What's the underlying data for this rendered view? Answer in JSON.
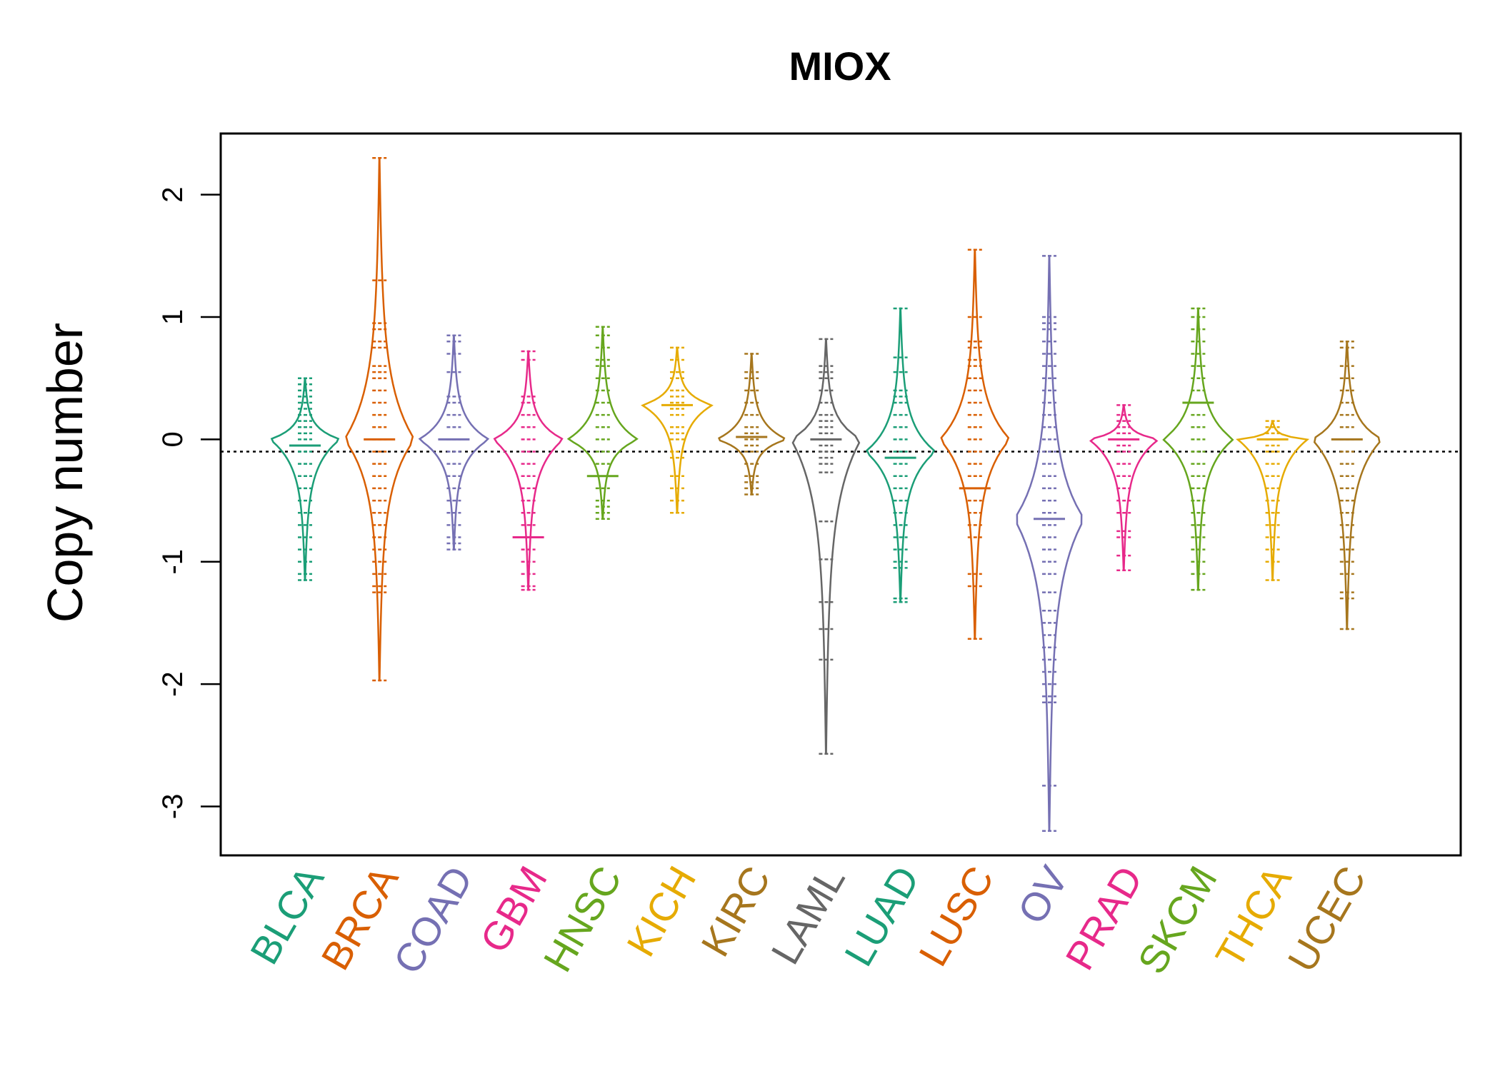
{
  "chart_data": {
    "type": "beanplot",
    "title": "MIOX",
    "xlabel": "",
    "ylabel": "Copy number",
    "ylim": [
      -3.4,
      2.5
    ],
    "yticks": [
      2,
      1,
      0,
      -1,
      -2,
      -3
    ],
    "ytick_labels": [
      "2",
      "1",
      "0",
      "-1",
      "-2",
      "-3"
    ],
    "overall_mean": -0.1,
    "grid": false,
    "legend": "none",
    "categories": [
      "BLCA",
      "BRCA",
      "COAD",
      "GBM",
      "HNSC",
      "KICH",
      "KIRC",
      "LAML",
      "LUAD",
      "LUSC",
      "OV",
      "PRAD",
      "SKCM",
      "THCA",
      "UCEC"
    ],
    "colors": [
      "#1b9e77",
      "#d95f02",
      "#7570b3",
      "#e7298a",
      "#66a61e",
      "#e6ab02",
      "#a6761d",
      "#666666",
      "#1b9e77",
      "#d95f02",
      "#7570b3",
      "#e7298a",
      "#66a61e",
      "#e6ab02",
      "#a6761d"
    ],
    "series": [
      {
        "name": "BLCA",
        "min": -1.15,
        "max": 0.5,
        "mode": 0.0,
        "mean": -0.05,
        "points": [
          0.5,
          0.45,
          0.4,
          0.35,
          0.3,
          0.25,
          0.2,
          0.15,
          0.1,
          0.05,
          0.0,
          -0.05,
          -0.1,
          -0.2,
          -0.3,
          -0.4,
          -0.5,
          -0.6,
          -0.7,
          -0.8,
          -0.9,
          -1.0,
          -1.1,
          -1.15
        ]
      },
      {
        "name": "BRCA",
        "min": -1.97,
        "max": 2.3,
        "mode": 0.0,
        "mean": 0.0,
        "points": [
          2.3,
          1.3,
          0.95,
          0.9,
          0.8,
          0.75,
          0.6,
          0.55,
          0.5,
          0.4,
          0.3,
          0.2,
          0.1,
          0.0,
          -0.1,
          -0.2,
          -0.3,
          -0.4,
          -0.5,
          -0.6,
          -0.7,
          -0.8,
          -0.9,
          -1.0,
          -1.1,
          -1.2,
          -1.25,
          -1.97
        ]
      },
      {
        "name": "COAD",
        "min": -0.9,
        "max": 0.85,
        "mode": 0.0,
        "mean": 0.0,
        "points": [
          0.85,
          0.8,
          0.7,
          0.55,
          0.35,
          0.3,
          0.2,
          0.1,
          0.0,
          -0.1,
          -0.2,
          -0.3,
          -0.4,
          -0.5,
          -0.6,
          -0.7,
          -0.8,
          -0.85,
          -0.9
        ]
      },
      {
        "name": "GBM",
        "min": -1.23,
        "max": 0.72,
        "mode": 0.0,
        "mean": -0.8,
        "points": [
          0.72,
          0.65,
          0.35,
          0.3,
          0.2,
          0.1,
          0.0,
          -0.1,
          -0.2,
          -0.3,
          -0.4,
          -0.5,
          -0.6,
          -0.7,
          -0.8,
          -0.9,
          -1.0,
          -1.1,
          -1.2,
          -1.23
        ]
      },
      {
        "name": "HNSC",
        "min": -0.65,
        "max": 0.92,
        "mode": 0.0,
        "mean": -0.3,
        "points": [
          0.92,
          0.85,
          0.75,
          0.65,
          0.6,
          0.5,
          0.4,
          0.3,
          0.2,
          0.1,
          0.0,
          -0.1,
          -0.2,
          -0.3,
          -0.4,
          -0.5,
          -0.55,
          -0.6,
          -0.65
        ]
      },
      {
        "name": "KICH",
        "min": -0.6,
        "max": 0.75,
        "mode": 0.28,
        "mean": 0.28,
        "points": [
          0.75,
          0.65,
          0.55,
          0.5,
          0.4,
          0.35,
          0.3,
          0.28,
          0.25,
          0.2,
          0.1,
          0.05,
          0.0,
          -0.1,
          -0.15,
          -0.3,
          -0.4,
          -0.5,
          -0.6
        ]
      },
      {
        "name": "KIRC",
        "min": -0.45,
        "max": 0.7,
        "mode": 0.0,
        "mean": 0.02,
        "points": [
          0.7,
          0.55,
          0.5,
          0.4,
          0.3,
          0.2,
          0.1,
          0.05,
          0.0,
          -0.05,
          -0.1,
          -0.2,
          -0.3,
          -0.35,
          -0.4,
          -0.45
        ]
      },
      {
        "name": "LAML",
        "min": -2.57,
        "max": 0.82,
        "mode": 0.0,
        "mean": 0.0,
        "points": [
          0.82,
          0.6,
          0.55,
          0.5,
          0.4,
          0.3,
          0.2,
          0.15,
          0.1,
          0.05,
          0.0,
          -0.05,
          -0.1,
          -0.15,
          -0.2,
          -0.27,
          -0.67,
          -0.98,
          -1.33,
          -1.55,
          -1.8,
          -2.57
        ]
      },
      {
        "name": "LUAD",
        "min": -1.33,
        "max": 1.07,
        "mode": -0.1,
        "mean": -0.15,
        "points": [
          1.07,
          0.67,
          0.55,
          0.4,
          0.35,
          0.3,
          0.2,
          0.1,
          0.0,
          -0.1,
          -0.2,
          -0.3,
          -0.4,
          -0.5,
          -0.6,
          -0.7,
          -0.8,
          -0.9,
          -1.0,
          -1.05,
          -1.3,
          -1.33
        ]
      },
      {
        "name": "LUSC",
        "min": -1.63,
        "max": 1.55,
        "mode": 0.0,
        "mean": -0.4,
        "points": [
          1.55,
          1.0,
          0.8,
          0.75,
          0.65,
          0.6,
          0.5,
          0.4,
          0.3,
          0.2,
          0.1,
          0.0,
          -0.1,
          -0.2,
          -0.3,
          -0.4,
          -0.5,
          -0.6,
          -0.7,
          -0.8,
          -1.1,
          -1.2,
          -1.63
        ]
      },
      {
        "name": "OV",
        "min": -3.2,
        "max": 1.5,
        "mode": -0.65,
        "mean": -0.65,
        "points": [
          1.5,
          1.0,
          0.95,
          0.9,
          0.8,
          0.7,
          0.6,
          0.5,
          0.4,
          0.3,
          0.2,
          0.1,
          0.0,
          -0.1,
          -0.2,
          -0.3,
          -0.4,
          -0.5,
          -0.6,
          -0.7,
          -0.8,
          -0.9,
          -1.0,
          -1.1,
          -1.25,
          -1.4,
          -1.5,
          -1.6,
          -1.7,
          -1.8,
          -1.9,
          -2.0,
          -2.1,
          -2.15,
          -2.83,
          -3.2
        ]
      },
      {
        "name": "PRAD",
        "min": -1.07,
        "max": 0.28,
        "mode": 0.0,
        "mean": 0.0,
        "points": [
          0.28,
          0.2,
          0.15,
          0.1,
          0.05,
          0.0,
          -0.05,
          -0.1,
          -0.2,
          -0.3,
          -0.4,
          -0.5,
          -0.6,
          -0.75,
          -0.8,
          -0.95,
          -1.07
        ]
      },
      {
        "name": "SKCM",
        "min": -1.23,
        "max": 1.07,
        "mode": 0.0,
        "mean": 0.3,
        "points": [
          1.07,
          1.0,
          0.9,
          0.8,
          0.7,
          0.6,
          0.5,
          0.4,
          0.3,
          0.2,
          0.1,
          0.0,
          -0.1,
          -0.2,
          -0.3,
          -0.4,
          -0.5,
          -0.6,
          -0.7,
          -0.8,
          -0.9,
          -1.0,
          -1.1,
          -1.23
        ]
      },
      {
        "name": "THCA",
        "min": -1.15,
        "max": 0.15,
        "mode": 0.0,
        "mean": 0.0,
        "points": [
          0.15,
          0.1,
          0.05,
          0.0,
          -0.05,
          -0.1,
          -0.2,
          -0.3,
          -0.4,
          -0.5,
          -0.6,
          -0.7,
          -0.8,
          -0.9,
          -1.0,
          -1.15
        ]
      },
      {
        "name": "UCEC",
        "min": -1.55,
        "max": 0.8,
        "mode": 0.0,
        "mean": 0.0,
        "points": [
          0.8,
          0.75,
          0.6,
          0.5,
          0.4,
          0.3,
          0.2,
          0.1,
          0.0,
          -0.1,
          -0.2,
          -0.3,
          -0.4,
          -0.5,
          -0.6,
          -0.7,
          -0.8,
          -0.9,
          -1.0,
          -1.1,
          -1.25,
          -1.3,
          -1.55
        ]
      }
    ]
  }
}
